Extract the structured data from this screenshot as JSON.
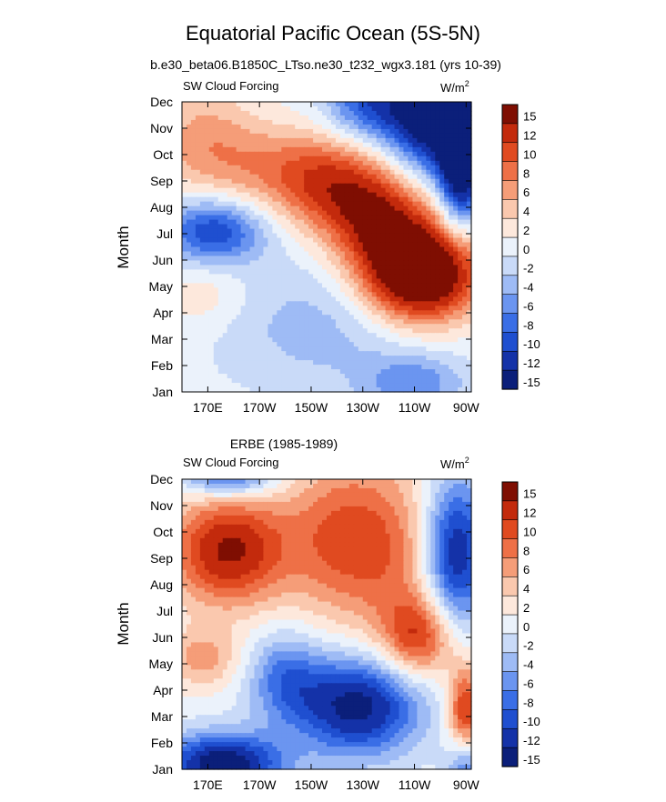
{
  "figure": {
    "title": "Equatorial Pacific Ocean (5S-5N)",
    "subtitle_top": "b.e30_beta06.B1850C_LTso.ne30_t232_wgx3.181 (yrs 10-39)",
    "subtitle_bottom": "ERBE (1985-1989)"
  },
  "colors": {
    "levels": [
      "#0b1f7a",
      "#1432a8",
      "#1f4fd0",
      "#3a6ee6",
      "#6b95f0",
      "#9ebbf5",
      "#c9daf8",
      "#ebf2fb",
      "#fde8dc",
      "#fac8ae",
      "#f59d78",
      "#ee7047",
      "#e04a20",
      "#c32a0c",
      "#7f0e02"
    ],
    "ocean_neutral": "#ffffff"
  },
  "chart_data": [
    {
      "type": "heatmap",
      "panel_label": "SW Cloud Forcing",
      "units": "W/m",
      "units_sup": "2",
      "ylabel": "Month",
      "xlabel": "",
      "x_ticks": [
        "170E",
        "170W",
        "150W",
        "130W",
        "110W",
        "90W"
      ],
      "x_tick_lon": [
        170,
        190,
        210,
        230,
        250,
        270
      ],
      "x_range": [
        160,
        272
      ],
      "y_ticks": [
        "Jan",
        "Feb",
        "Mar",
        "Apr",
        "May",
        "Jun",
        "Jul",
        "Aug",
        "Sep",
        "Oct",
        "Nov",
        "Dec"
      ],
      "colorbar_labels": [
        "15",
        "12",
        "10",
        "8",
        "6",
        "4",
        "2",
        "0",
        "-2",
        "-4",
        "-6",
        "-8",
        "-10",
        "-12",
        "-15"
      ],
      "colorbar_levels": [
        -15,
        -12,
        -10,
        -8,
        -6,
        -4,
        -2,
        0,
        2,
        4,
        6,
        8,
        10,
        12,
        15
      ],
      "features": [
        {
          "lon": 252,
          "month": 4.5,
          "sx": 16,
          "sy": 1.3,
          "amp": 22
        },
        {
          "lon": 236,
          "month": 6.5,
          "sx": 14,
          "sy": 1.2,
          "amp": 10
        },
        {
          "lon": 220,
          "month": 7.7,
          "sx": 16,
          "sy": 1.2,
          "amp": 8
        },
        {
          "lon": 198,
          "month": 8.5,
          "sx": 22,
          "sy": 1.2,
          "amp": 6
        },
        {
          "lon": 168,
          "month": 9.7,
          "sx": 14,
          "sy": 1.5,
          "amp": 5
        },
        {
          "lon": 258,
          "month": 10.4,
          "sx": 13,
          "sy": 1.4,
          "amp": -18
        },
        {
          "lon": 268,
          "month": 8.5,
          "sx": 6,
          "sy": 1.6,
          "amp": -16
        },
        {
          "lon": 232,
          "month": 11.0,
          "sx": 12,
          "sy": 1.0,
          "amp": -9
        },
        {
          "lon": 172,
          "month": 6.1,
          "sx": 14,
          "sy": 0.9,
          "amp": -11
        },
        {
          "lon": 215,
          "month": 2.5,
          "sx": 30,
          "sy": 1.8,
          "amp": -4
        },
        {
          "lon": 250,
          "month": 0.3,
          "sx": 14,
          "sy": 0.8,
          "amp": -6
        },
        {
          "lon": 168,
          "month": 3.8,
          "sx": 12,
          "sy": 1.0,
          "amp": 3
        }
      ]
    },
    {
      "type": "heatmap",
      "panel_label": "SW Cloud Forcing",
      "units": "W/m",
      "units_sup": "2",
      "ylabel": "Month",
      "xlabel": "",
      "x_ticks": [
        "170E",
        "170W",
        "150W",
        "130W",
        "110W",
        "90W"
      ],
      "x_tick_lon": [
        170,
        190,
        210,
        230,
        250,
        270
      ],
      "x_range": [
        160,
        272
      ],
      "y_ticks": [
        "Jan",
        "Feb",
        "Mar",
        "Apr",
        "May",
        "Jun",
        "Jul",
        "Aug",
        "Sep",
        "Oct",
        "Nov",
        "Dec"
      ],
      "colorbar_labels": [
        "15",
        "12",
        "10",
        "8",
        "6",
        "4",
        "2",
        "0",
        "-2",
        "-4",
        "-6",
        "-8",
        "-10",
        "-12",
        "-15"
      ],
      "colorbar_levels": [
        -15,
        -12,
        -10,
        -8,
        -6,
        -4,
        -2,
        0,
        2,
        4,
        6,
        8,
        10,
        12,
        15
      ],
      "features": [
        {
          "lon": 178,
          "month": 8.3,
          "sx": 16,
          "sy": 1.5,
          "amp": 14
        },
        {
          "lon": 222,
          "month": 8.8,
          "sx": 16,
          "sy": 2.2,
          "amp": 9
        },
        {
          "lon": 252,
          "month": 5.0,
          "sx": 10,
          "sy": 1.1,
          "amp": 10
        },
        {
          "lon": 245,
          "month": 8.0,
          "sx": 14,
          "sy": 2.5,
          "amp": 5
        },
        {
          "lon": 228,
          "month": 2.4,
          "sx": 17,
          "sy": 1.3,
          "amp": -15
        },
        {
          "lon": 200,
          "month": 3.5,
          "sx": 10,
          "sy": 1.2,
          "amp": -7
        },
        {
          "lon": 176,
          "month": 0.2,
          "sx": 16,
          "sy": 0.8,
          "amp": -16
        },
        {
          "lon": 178,
          "month": 11.2,
          "sx": 12,
          "sy": 0.6,
          "amp": -11
        },
        {
          "lon": 266,
          "month": 8.2,
          "sx": 9,
          "sy": 2.0,
          "amp": -14
        },
        {
          "lon": 270,
          "month": 2.2,
          "sx": 5,
          "sy": 1.2,
          "amp": 12
        },
        {
          "lon": 270,
          "month": 0.2,
          "sx": 5,
          "sy": 0.8,
          "amp": -8
        },
        {
          "lon": 168,
          "month": 4.2,
          "sx": 10,
          "sy": 0.8,
          "amp": 6
        }
      ]
    }
  ]
}
